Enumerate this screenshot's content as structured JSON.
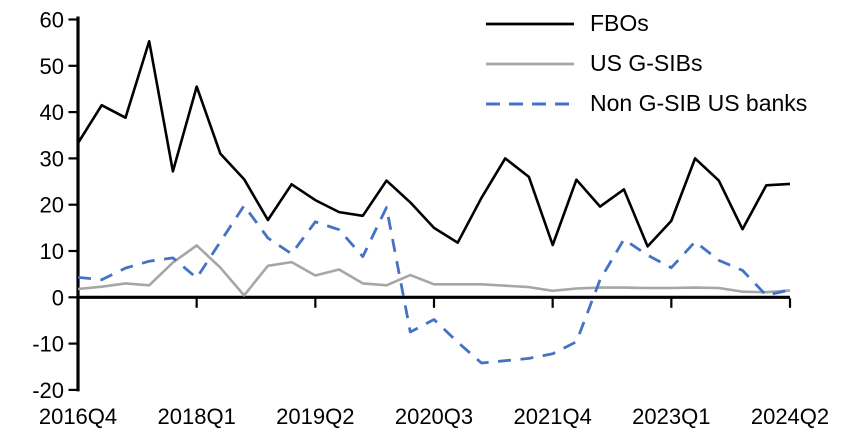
{
  "chart_data": {
    "type": "line",
    "title": "",
    "xlabel": "",
    "ylabel": "",
    "grid": false,
    "legend_position": "top-right",
    "ylim": [
      -20,
      60
    ],
    "y_tick_step": 10,
    "y_tick_labels": [
      "60",
      "50",
      "40",
      "30",
      "20",
      "10",
      "0",
      "-10",
      "-20"
    ],
    "x_categories": [
      "2016Q4",
      "2017Q1",
      "2017Q2",
      "2017Q3",
      "2017Q4",
      "2018Q1",
      "2018Q2",
      "2018Q3",
      "2018Q4",
      "2019Q1",
      "2019Q2",
      "2019Q3",
      "2019Q4",
      "2020Q1",
      "2020Q2",
      "2020Q3",
      "2020Q4",
      "2021Q1",
      "2021Q2",
      "2021Q3",
      "2021Q4",
      "2022Q1",
      "2022Q2",
      "2022Q3",
      "2022Q4",
      "2023Q1",
      "2023Q2",
      "2023Q3",
      "2023Q4",
      "2024Q1",
      "2024Q2"
    ],
    "x_tick_labels": [
      "2016Q4",
      "2018Q1",
      "2019Q2",
      "2020Q3",
      "2021Q4",
      "2023Q1",
      "2024Q2"
    ],
    "x_tick_every": 5,
    "series": [
      {
        "name": "FBOs",
        "color": "#000000",
        "style": "solid",
        "values": [
          33.3,
          41.5,
          38.8,
          55.3,
          27.2,
          45.5,
          31.0,
          25.5,
          16.7,
          24.4,
          21.0,
          18.4,
          17.6,
          25.2,
          20.5,
          15.0,
          11.8,
          21.5,
          30.0,
          26.0,
          11.3,
          25.4,
          19.6,
          23.3,
          11.0,
          16.5,
          30.0,
          25.2,
          14.7,
          24.2,
          24.5
        ]
      },
      {
        "name": "US G-SIBs",
        "color": "#a6a6a6",
        "style": "solid",
        "values": [
          1.8,
          2.3,
          3.0,
          2.6,
          7.5,
          11.2,
          6.4,
          0.4,
          6.8,
          7.6,
          4.7,
          6.0,
          3.0,
          2.6,
          4.8,
          2.8,
          2.8,
          2.8,
          2.5,
          2.2,
          1.4,
          1.9,
          2.1,
          2.1,
          2.0,
          2.0,
          2.1,
          2.0,
          1.2,
          1.1,
          1.5
        ]
      },
      {
        "name": "Non G-SIB US banks",
        "color": "#4472c4",
        "style": "dashed",
        "values": [
          4.3,
          3.8,
          6.3,
          7.8,
          8.5,
          4.2,
          12.0,
          19.8,
          12.8,
          9.4,
          16.3,
          14.6,
          8.8,
          19.4,
          -7.5,
          -4.8,
          -9.7,
          -14.2,
          -13.7,
          -13.2,
          -12.2,
          -9.6,
          3.8,
          12.5,
          9.1,
          6.4,
          12.0,
          8.0,
          5.8,
          0.4,
          1.6
        ]
      }
    ]
  }
}
